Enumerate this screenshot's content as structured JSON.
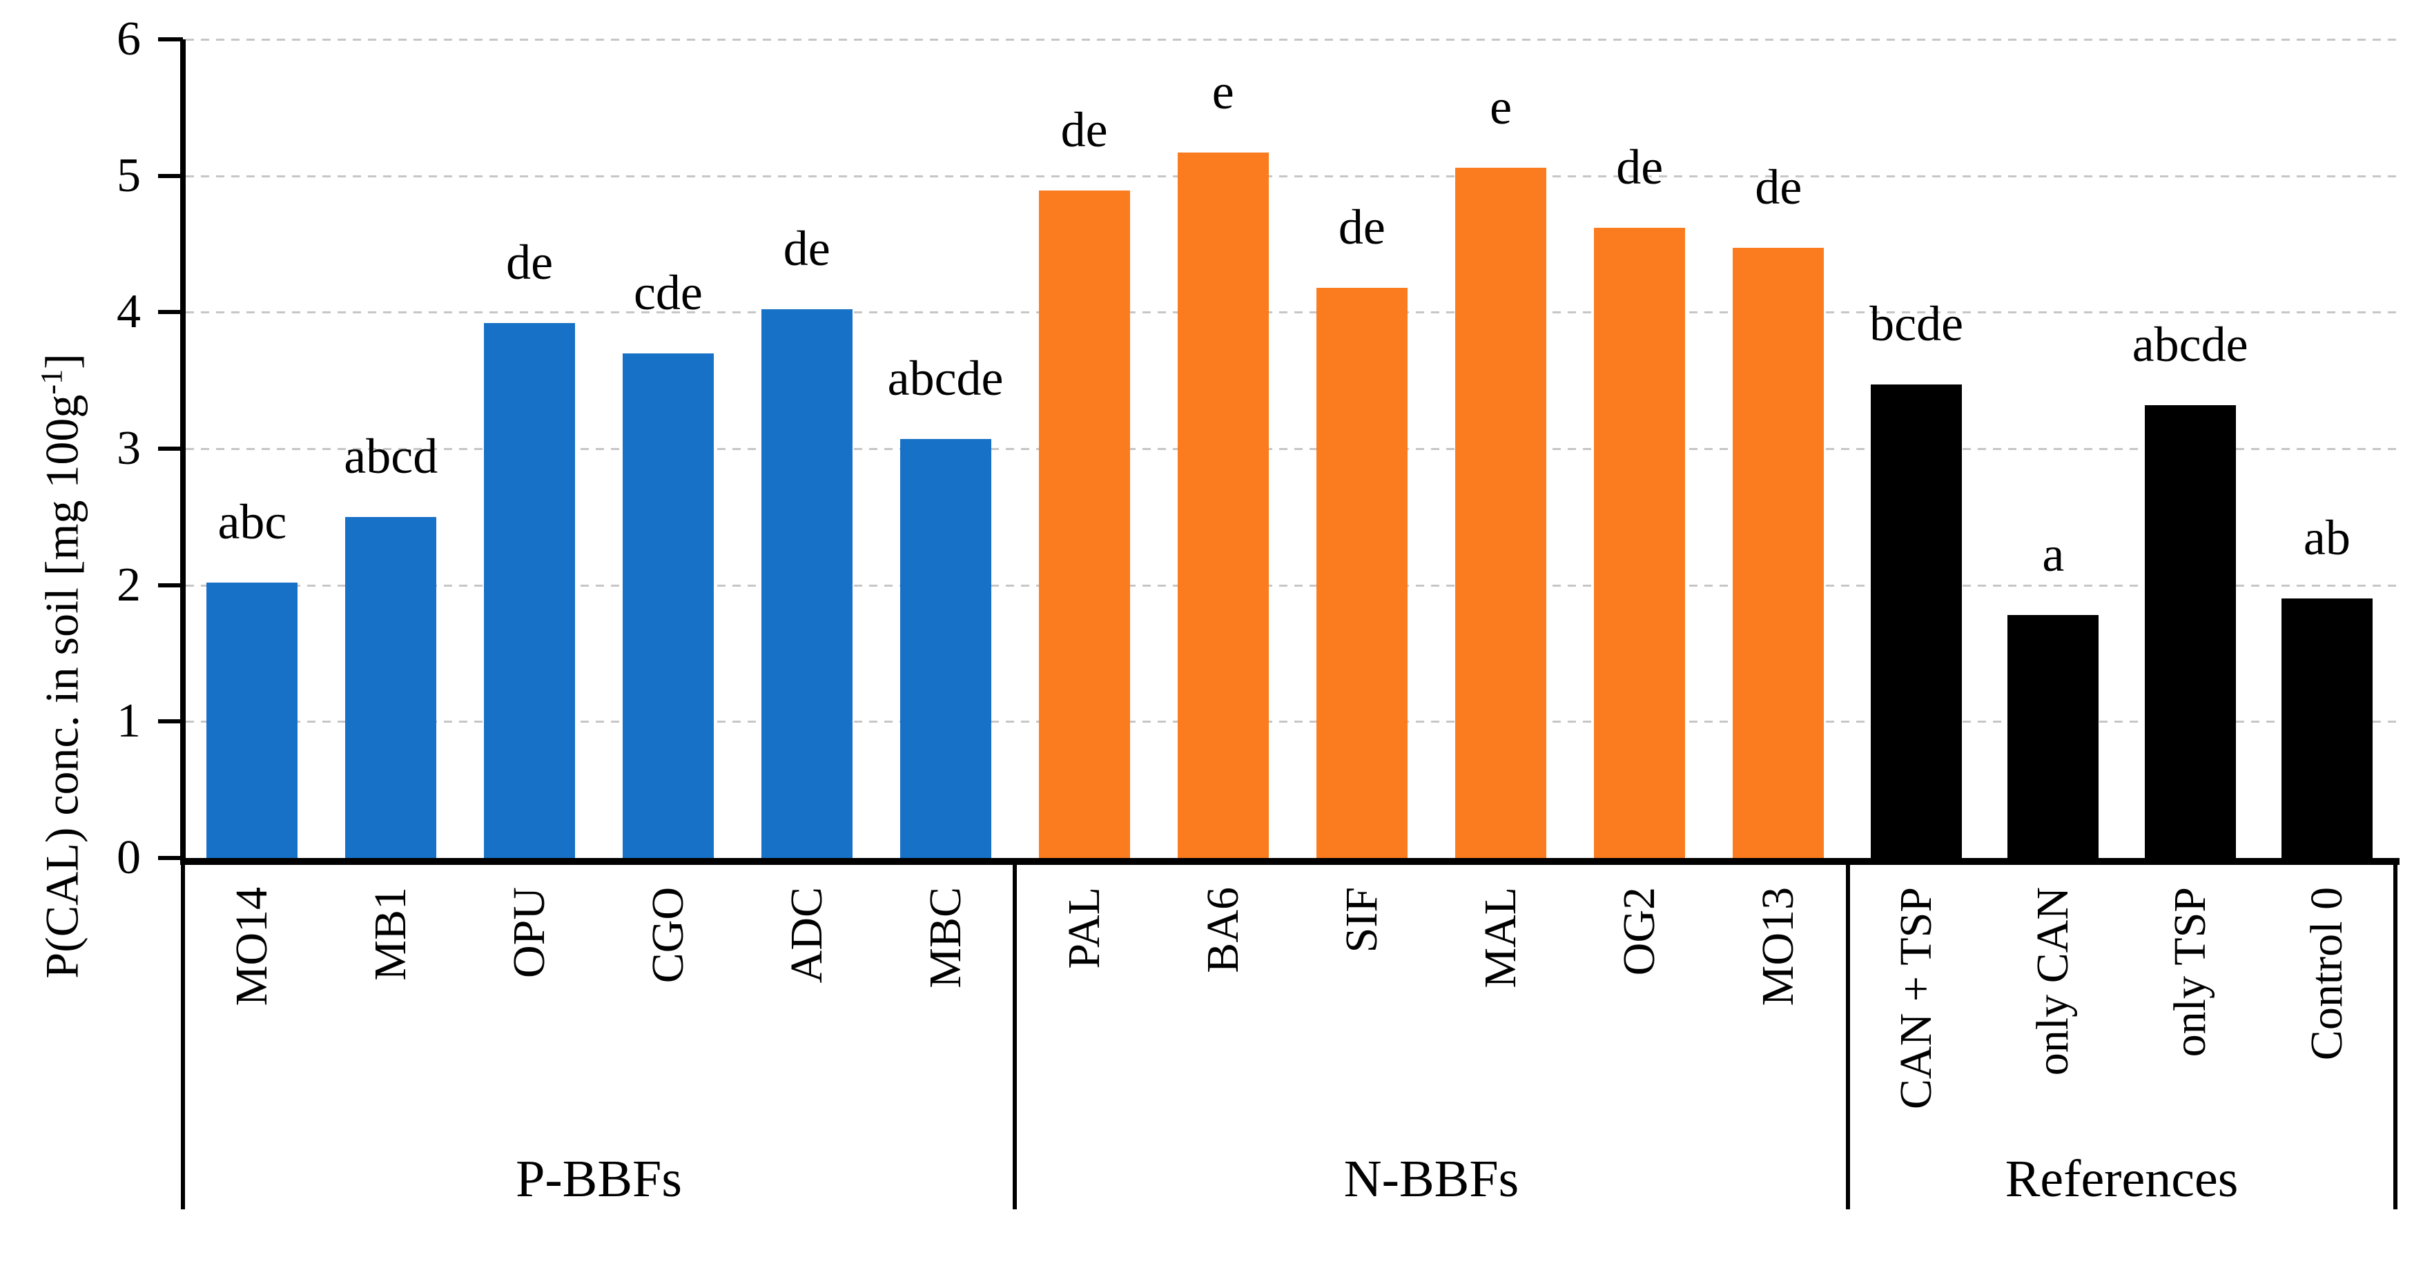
{
  "chart_data": {
    "type": "bar",
    "title": "",
    "xlabel": "",
    "ylabel_prefix": "P(CAL) conc. in soil [mg 100g",
    "ylabel_superscript": "-1",
    "ylabel_suffix": "]",
    "ylim": [
      0,
      6
    ],
    "yticks": [
      0,
      1,
      2,
      3,
      4,
      5,
      6
    ],
    "grid": true,
    "legend_position": "none",
    "bar_annotation_meaning": "significance-letters",
    "groups": [
      {
        "name": "P-BBFs",
        "color": "#1771C6",
        "bars": [
          {
            "label": "MO14",
            "value": 2.02,
            "letters": "abc"
          },
          {
            "label": "MB1",
            "value": 2.5,
            "letters": "abcd"
          },
          {
            "label": "OPU",
            "value": 3.92,
            "letters": "de"
          },
          {
            "label": "CGO",
            "value": 3.7,
            "letters": "cde"
          },
          {
            "label": "ADC",
            "value": 4.02,
            "letters": "de"
          },
          {
            "label": "MBC",
            "value": 3.07,
            "letters": "abcde"
          }
        ]
      },
      {
        "name": "N-BBFs",
        "color": "#FB7C1F",
        "bars": [
          {
            "label": "PAL",
            "value": 4.89,
            "letters": "de"
          },
          {
            "label": "BA6",
            "value": 5.17,
            "letters": "e"
          },
          {
            "label": "SIF",
            "value": 4.18,
            "letters": "de"
          },
          {
            "label": "MAL",
            "value": 5.06,
            "letters": "e"
          },
          {
            "label": "OG2",
            "value": 4.62,
            "letters": "de"
          },
          {
            "label": "MO13",
            "value": 4.47,
            "letters": "de"
          }
        ]
      },
      {
        "name": "References",
        "color": "#000000",
        "bars": [
          {
            "label": "CAN + TSP",
            "value": 3.47,
            "letters": "bcde"
          },
          {
            "label": "only CAN",
            "value": 1.78,
            "letters": "a"
          },
          {
            "label": "only TSP",
            "value": 3.32,
            "letters": "abcde"
          },
          {
            "label": "Control 0",
            "value": 1.9,
            "letters": "ab"
          }
        ]
      }
    ]
  },
  "colors": {
    "background": "#FFFFFF",
    "gridline": "#C6C6C6",
    "axis": "#000000",
    "blue_series": "#1771C6",
    "orange_series": "#FB7C1F",
    "black_series": "#000000"
  }
}
